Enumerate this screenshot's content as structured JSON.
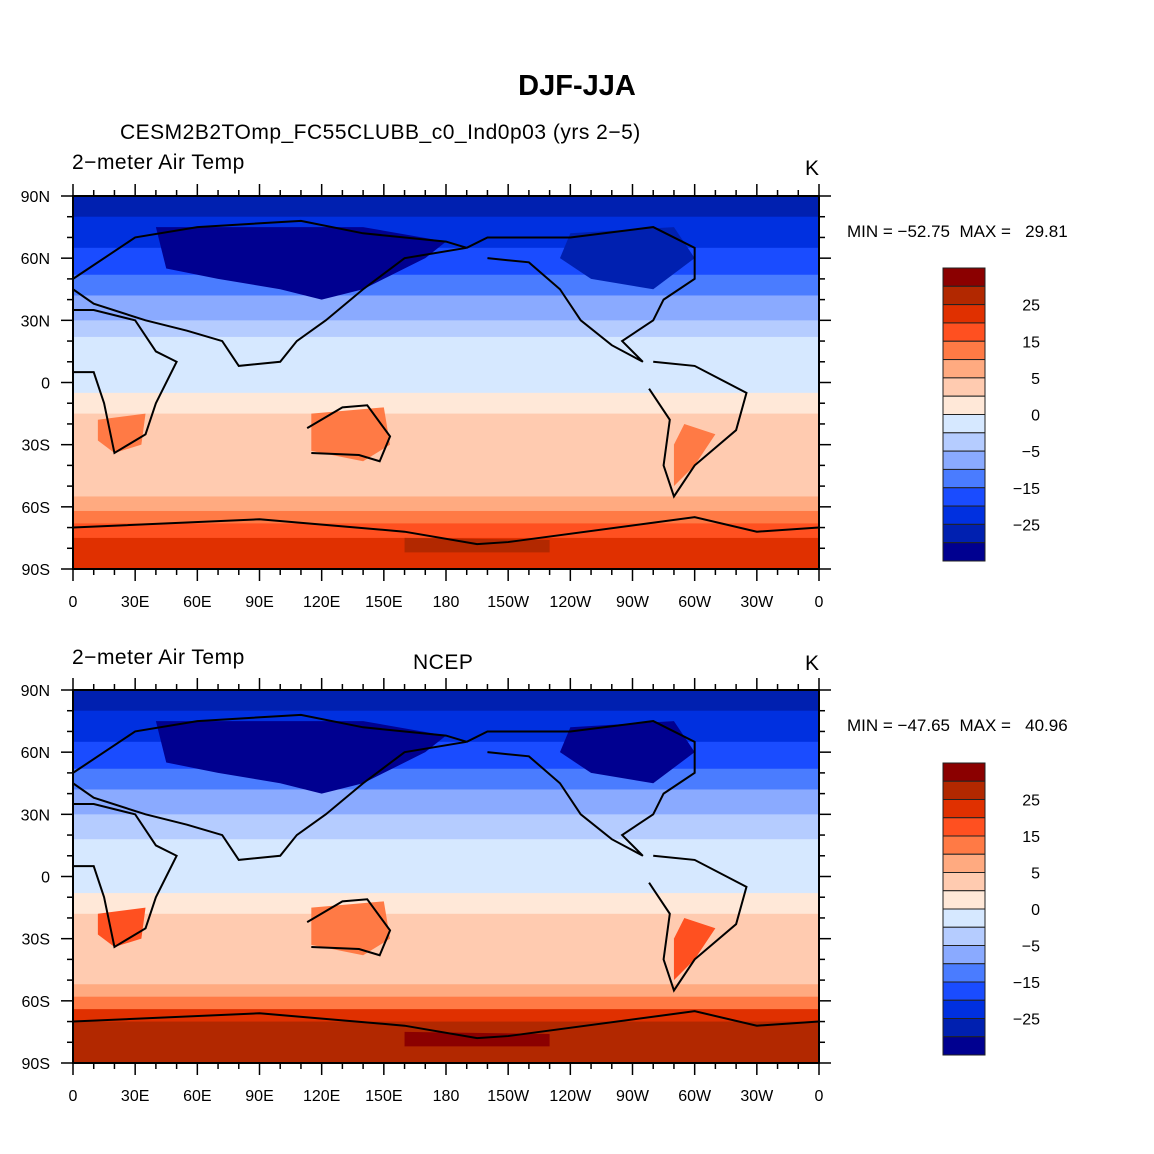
{
  "title": "DJF-JJA",
  "colorbar": {
    "colors": [
      "#8b0000",
      "#b22800",
      "#e03000",
      "#ff5020",
      "#ff7a45",
      "#ffaa80",
      "#ffcbb0",
      "#ffe8d8",
      "#d6e8ff",
      "#b5ccff",
      "#8aaaff",
      "#4a7cff",
      "#1a4cff",
      "#0030e0",
      "#0020b0",
      "#000090"
    ],
    "labels": [
      "25",
      "15",
      "5",
      "0",
      "−5",
      "−15",
      "−25"
    ]
  },
  "x_ticks": [
    "0",
    "30E",
    "60E",
    "90E",
    "120E",
    "150E",
    "180",
    "150W",
    "120W",
    "90W",
    "60W",
    "30W",
    "0"
  ],
  "y_ticks": [
    "90N",
    "60N",
    "30N",
    "0",
    "30S",
    "60S",
    "90S"
  ],
  "panels": [
    {
      "left_title": "2−meter Air Temp",
      "center_title": "CESM2B2TOmp_FC55CLUBB_c0_Ind0p03 (yrs 2−5)",
      "units": "K",
      "min_max": "MIN = −52.75  MAX =   29.81"
    },
    {
      "left_title": "2−meter Air Temp",
      "center_title": "NCEP",
      "units": "K",
      "min_max": "MIN = −47.65  MAX =   40.96"
    }
  ],
  "chart_data": {
    "type": "heatmap",
    "title": "DJF-JJA",
    "variable": "2-meter Air Temp",
    "units": "K",
    "xlim": [
      0,
      360
    ],
    "ylim": [
      -90,
      90
    ],
    "levels": [
      -35,
      -30,
      -25,
      -20,
      -15,
      -10,
      -5,
      -2,
      0,
      2,
      5,
      10,
      15,
      20,
      25,
      30
    ],
    "panels": [
      {
        "name": "CESM2B2TOmp_FC55CLUBB_c0_Ind0p03 (yrs 2-5)",
        "min": -52.75,
        "max": 29.81
      },
      {
        "name": "NCEP",
        "min": -47.65,
        "max": 40.96
      }
    ]
  }
}
